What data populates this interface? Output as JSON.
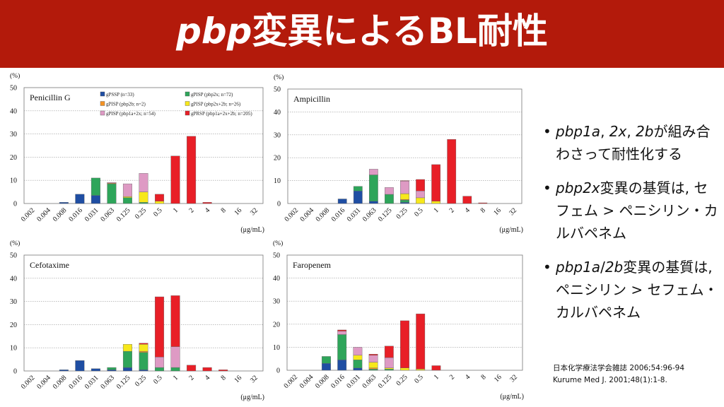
{
  "slide": {
    "title_italic": "pbp",
    "title_rest": "変異によるBL耐性",
    "colors": {
      "header": "#b31a0b"
    }
  },
  "bullets": [
    {
      "parts": [
        {
          "t": "pbp1a",
          "i": true
        },
        {
          "t": ", ",
          "i": false
        },
        {
          "t": "2x",
          "i": true
        },
        {
          "t": ", ",
          "i": false
        },
        {
          "t": "2b",
          "i": true
        },
        {
          "t": "が組み合わさって耐性化する",
          "i": false
        }
      ]
    },
    {
      "parts": [
        {
          "t": "pbp2x",
          "i": true
        },
        {
          "t": "変異の基質は, セフェム > ペニシリン・カルバペネム",
          "i": false
        }
      ]
    },
    {
      "parts": [
        {
          "t": "pbp1a",
          "i": true
        },
        {
          "t": "/",
          "i": false
        },
        {
          "t": "2b",
          "i": true
        },
        {
          "t": "変異の基質は, ペニシリン > セフェム・カルバペネム",
          "i": false
        }
      ]
    }
  ],
  "references": [
    "日本化学療法学会雑誌 2006;54:96-94",
    "Kurume Med J. 2001;48(1):1-8."
  ],
  "chart_common": {
    "y_unit": "(%)",
    "x_unit": "(μg/mL)",
    "categories": [
      "0.002",
      "0.004",
      "0.008",
      "0.016",
      "0.031",
      "0.063",
      "0.125",
      "0.25",
      "0.5",
      "1",
      "2",
      "4",
      "8",
      "16",
      "32"
    ],
    "ylim": [
      0,
      50
    ],
    "yticks": [
      0,
      10,
      20,
      30,
      40,
      50
    ]
  },
  "legend": [
    {
      "name": "gPSSP (n=33)",
      "color": "#1f4ea3"
    },
    {
      "name": "gPISP (pbp2x; n=72)",
      "color": "#2ea55a"
    },
    {
      "name": "gPISP (pbp2b; n=2)",
      "color": "#f59323"
    },
    {
      "name": "gPISP (pbp2x+2b; n=26)",
      "color": "#f7e81b"
    },
    {
      "name": "gPISP (pbp1a+2x; n=54)",
      "color": "#de9ac4"
    },
    {
      "name": "gPRSP (pbp1a+2x+2b; n=205)",
      "color": "#e81f27"
    }
  ],
  "chart_data": [
    {
      "type": "bar",
      "stacked": true,
      "title": "Penicillin G",
      "ylim": [
        0,
        50
      ],
      "categories": [
        "0.002",
        "0.004",
        "0.008",
        "0.016",
        "0.031",
        "0.063",
        "0.125",
        "0.25",
        "0.5",
        "1",
        "2",
        "4",
        "8",
        "16",
        "32"
      ],
      "series": [
        {
          "name": "gPSSP (n=33)",
          "values": [
            0,
            0,
            0.5,
            4,
            3.5,
            0,
            0,
            0,
            0,
            0,
            0,
            0,
            0,
            0,
            0
          ]
        },
        {
          "name": "gPISP (pbp2x; n=72)",
          "values": [
            0,
            0,
            0,
            0,
            7.5,
            8.5,
            2.5,
            0.5,
            0,
            0,
            0,
            0,
            0,
            0,
            0
          ]
        },
        {
          "name": "gPISP (pbp2b; n=2)",
          "values": [
            0,
            0,
            0,
            0,
            0,
            0.3,
            0,
            0,
            0,
            0,
            0,
            0,
            0,
            0,
            0
          ]
        },
        {
          "name": "gPISP (pbp2x+2b; n=26)",
          "values": [
            0,
            0,
            0,
            0,
            0,
            0,
            0.5,
            4.5,
            1,
            0,
            0,
            0,
            0,
            0,
            0
          ]
        },
        {
          "name": "gPISP (pbp1a+2x; n=54)",
          "values": [
            0,
            0,
            0,
            0,
            0,
            0.3,
            5.5,
            8,
            0,
            0,
            0,
            0,
            0,
            0,
            0
          ]
        },
        {
          "name": "gPRSP (pbp1a+2x+2b; n=205)",
          "values": [
            0,
            0,
            0,
            0,
            0,
            0,
            0,
            0,
            3,
            20.5,
            29,
            0.5,
            0,
            0,
            0
          ]
        }
      ]
    },
    {
      "type": "bar",
      "stacked": true,
      "title": "Ampicillin",
      "ylim": [
        0,
        50
      ],
      "categories": [
        "0.002",
        "0.004",
        "0.008",
        "0.016",
        "0.031",
        "0.063",
        "0.125",
        "0.25",
        "0.5",
        "1",
        "2",
        "4",
        "8",
        "16",
        "32"
      ],
      "series": [
        {
          "name": "gPSSP (n=33)",
          "values": [
            0,
            0,
            0,
            2,
            5.5,
            1,
            0,
            0.5,
            0,
            0,
            0,
            0,
            0,
            0,
            0
          ]
        },
        {
          "name": "gPISP (pbp2x; n=72)",
          "values": [
            0,
            0,
            0,
            0,
            2,
            11.5,
            4,
            1,
            0,
            0,
            0,
            0,
            0,
            0,
            0
          ]
        },
        {
          "name": "gPISP (pbp2b; n=2)",
          "values": [
            0,
            0,
            0,
            0,
            0,
            0,
            0,
            0.3,
            0,
            0,
            0,
            0,
            0,
            0,
            0
          ]
        },
        {
          "name": "gPISP (pbp2x+2b; n=26)",
          "values": [
            0,
            0,
            0,
            0,
            0,
            0,
            0,
            2.5,
            2.5,
            1,
            0,
            0,
            0,
            0,
            0
          ]
        },
        {
          "name": "gPISP (pbp1a+2x; n=54)",
          "values": [
            0,
            0,
            0,
            0,
            0,
            2.5,
            3,
            5.5,
            3,
            0,
            0,
            0,
            0,
            0,
            0
          ]
        },
        {
          "name": "gPRSP (pbp1a+2x+2b; n=205)",
          "values": [
            0,
            0,
            0,
            0,
            0,
            0,
            0,
            0.2,
            5,
            16,
            28,
            3.2,
            0.3,
            0,
            0
          ]
        }
      ]
    },
    {
      "type": "bar",
      "stacked": true,
      "title": "Cefotaxime",
      "ylim": [
        0,
        50
      ],
      "categories": [
        "0.002",
        "0.004",
        "0.008",
        "0.016",
        "0.031",
        "0.063",
        "0.125",
        "0.25",
        "0.5",
        "1",
        "2",
        "4",
        "8",
        "16",
        "32"
      ],
      "series": [
        {
          "name": "gPSSP (n=33)",
          "values": [
            0,
            0,
            0.5,
            4.5,
            1,
            0.5,
            1.5,
            0.5,
            0,
            0,
            0,
            0,
            0,
            0,
            0
          ]
        },
        {
          "name": "gPISP (pbp2x; n=72)",
          "values": [
            0,
            0,
            0,
            0,
            0,
            1,
            7,
            7.5,
            1.5,
            1.5,
            0,
            0,
            0,
            0,
            0
          ]
        },
        {
          "name": "gPISP (pbp2b; n=2)",
          "values": [
            0,
            0,
            0,
            0,
            0,
            0,
            0,
            0.5,
            0,
            0,
            0,
            0,
            0,
            0,
            0
          ]
        },
        {
          "name": "gPISP (pbp2x+2b; n=26)",
          "values": [
            0,
            0,
            0,
            0,
            0,
            0,
            3,
            3,
            0,
            0,
            0,
            0,
            0,
            0,
            0
          ]
        },
        {
          "name": "gPISP (pbp1a+2x; n=54)",
          "values": [
            0,
            0,
            0,
            0,
            0,
            0,
            0,
            0,
            4.5,
            9,
            0,
            0,
            0,
            0,
            0
          ]
        },
        {
          "name": "gPRSP (pbp1a+2x+2b; n=205)",
          "values": [
            0,
            0,
            0,
            0,
            0,
            0,
            0,
            0.5,
            26,
            22,
            2.5,
            1.5,
            0.5,
            0,
            0
          ]
        }
      ]
    },
    {
      "type": "bar",
      "stacked": true,
      "title": "Faropenem",
      "ylim": [
        0,
        50
      ],
      "categories": [
        "0.002",
        "0.004",
        "0.008",
        "0.016",
        "0.031",
        "0.063",
        "0.125",
        "0.25",
        "0.5",
        "1",
        "2",
        "4",
        "8",
        "16",
        "32"
      ],
      "series": [
        {
          "name": "gPSSP (n=33)",
          "values": [
            0,
            0,
            3,
            4.5,
            1,
            0,
            0,
            0,
            0,
            0,
            0,
            0,
            0,
            0,
            0
          ]
        },
        {
          "name": "gPISP (pbp2x; n=72)",
          "values": [
            0,
            0,
            3,
            11,
            3.5,
            0.5,
            0.5,
            0,
            0,
            0,
            0,
            0,
            0,
            0,
            0
          ]
        },
        {
          "name": "gPISP (pbp2b; n=2)",
          "values": [
            0,
            0,
            0,
            0,
            0,
            0.5,
            0,
            0,
            0,
            0,
            0,
            0,
            0,
            0,
            0
          ]
        },
        {
          "name": "gPISP (pbp2x+2b; n=26)",
          "values": [
            0,
            0,
            0,
            0,
            2,
            2.5,
            0.5,
            1,
            0.5,
            0,
            0,
            0,
            0,
            0,
            0
          ]
        },
        {
          "name": "gPISP (pbp1a+2x; n=54)",
          "values": [
            0,
            0,
            0,
            1.5,
            3.5,
            3,
            4.5,
            0,
            0,
            0,
            0,
            0,
            0,
            0,
            0
          ]
        },
        {
          "name": "gPRSP (pbp1a+2x+2b; n=205)",
          "values": [
            0,
            0,
            0,
            0.5,
            0,
            0.5,
            5,
            20.5,
            24,
            2,
            0,
            0,
            0,
            0,
            0
          ]
        }
      ]
    }
  ]
}
